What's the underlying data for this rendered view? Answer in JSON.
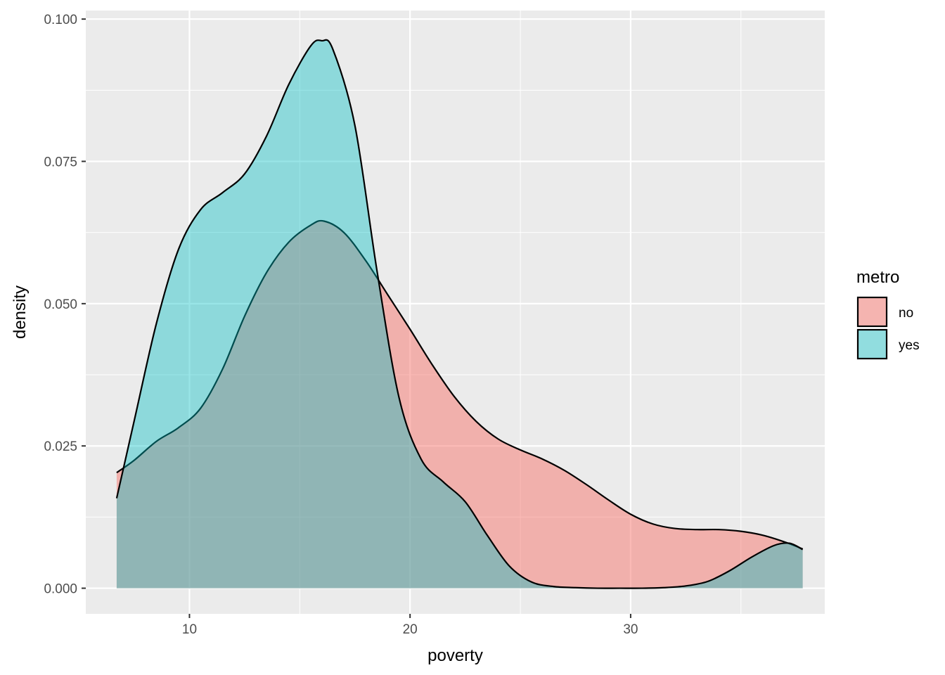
{
  "chart_data": {
    "type": "area",
    "subtype": "density",
    "xlabel": "poverty",
    "ylabel": "density",
    "xlim": [
      5.3,
      38.8
    ],
    "ylim": [
      -0.0045,
      0.1015
    ],
    "x_ticks": [
      10,
      20,
      30
    ],
    "x_tick_labels": [
      "10",
      "20",
      "30"
    ],
    "y_ticks": [
      0,
      0.025,
      0.05,
      0.075,
      0.1
    ],
    "y_tick_labels": [
      "0.000",
      "0.025",
      "0.050",
      "0.075",
      "0.100"
    ],
    "grid": true,
    "legend": {
      "title": "metro",
      "position": "right"
    },
    "series": [
      {
        "name": "no",
        "color": "#F8766D",
        "fill_opacity": 0.5,
        "x": [
          6.7,
          7.5,
          8.5,
          9.5,
          10.5,
          11.5,
          12.5,
          13.5,
          14.5,
          15.5,
          16.1,
          17.0,
          18.0,
          19.0,
          20.0,
          21.0,
          22.0,
          23.0,
          24.0,
          25.0,
          26.0,
          27.0,
          28.0,
          29.0,
          30.0,
          31.0,
          32.0,
          33.0,
          34.0,
          35.0,
          36.0,
          37.0,
          37.8
        ],
        "y": [
          0.0203,
          0.0225,
          0.0258,
          0.0282,
          0.0316,
          0.0385,
          0.0478,
          0.0555,
          0.0608,
          0.0638,
          0.0645,
          0.0625,
          0.0575,
          0.0515,
          0.0455,
          0.0393,
          0.0337,
          0.0293,
          0.0262,
          0.0243,
          0.0227,
          0.0207,
          0.0182,
          0.0155,
          0.013,
          0.0113,
          0.0105,
          0.0103,
          0.0103,
          0.01,
          0.0093,
          0.0081,
          0.0069
        ]
      },
      {
        "name": "yes",
        "color": "#00BFC4",
        "fill_opacity": 0.4,
        "x": [
          6.7,
          7.5,
          8.5,
          9.5,
          10.5,
          11.5,
          12.5,
          13.5,
          14.5,
          15.5,
          16.0,
          16.5,
          17.5,
          18.5,
          19.5,
          20.5,
          21.5,
          22.5,
          23.5,
          24.5,
          25.5,
          26.5,
          27.5,
          28.5,
          29.5,
          30.5,
          31.5,
          32.5,
          33.5,
          34.5,
          35.5,
          36.5,
          37.2,
          37.8
        ],
        "y": [
          0.0158,
          0.0295,
          0.0465,
          0.0595,
          0.0665,
          0.0695,
          0.0728,
          0.0795,
          0.0885,
          0.0953,
          0.0962,
          0.0947,
          0.0813,
          0.0558,
          0.0335,
          0.0227,
          0.0187,
          0.0152,
          0.0093,
          0.0039,
          0.0011,
          0.0003,
          0.0001,
          0.0,
          0.0,
          0.0,
          0.0001,
          0.0004,
          0.0012,
          0.0031,
          0.0055,
          0.0075,
          0.0079,
          0.0068
        ]
      }
    ]
  }
}
